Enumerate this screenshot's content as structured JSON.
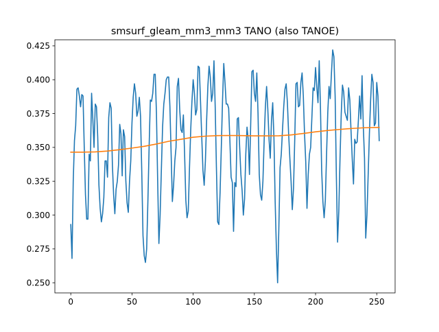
{
  "chart_data": {
    "type": "line",
    "title": "smsurf_gleam_mm3_mm3 TANO (also TANOE)",
    "xlabel": "",
    "ylabel": "",
    "xlim": [
      -13,
      265
    ],
    "ylim": [
      0.2425,
      0.4295
    ],
    "x_ticks": [
      0,
      50,
      100,
      150,
      200,
      250
    ],
    "y_ticks": [
      0.25,
      0.275,
      0.3,
      0.325,
      0.35,
      0.375,
      0.4,
      0.425
    ],
    "grid": false,
    "legend": "none",
    "series": [
      {
        "color": "#1f77b4",
        "points": [
          [
            0,
            0.293
          ],
          [
            1,
            0.268
          ],
          [
            2,
            0.325
          ],
          [
            3,
            0.355
          ],
          [
            4,
            0.366
          ],
          [
            5,
            0.393
          ],
          [
            6,
            0.394
          ],
          [
            7,
            0.388
          ],
          [
            8,
            0.38
          ],
          [
            9,
            0.389
          ],
          [
            10,
            0.388
          ],
          [
            11,
            0.35
          ],
          [
            12,
            0.315
          ],
          [
            13,
            0.297
          ],
          [
            14,
            0.297
          ],
          [
            15,
            0.345
          ],
          [
            16,
            0.34
          ],
          [
            17,
            0.39
          ],
          [
            18,
            0.371
          ],
          [
            19,
            0.35
          ],
          [
            20,
            0.382
          ],
          [
            21,
            0.38
          ],
          [
            22,
            0.358
          ],
          [
            23,
            0.322
          ],
          [
            24,
            0.305
          ],
          [
            25,
            0.295
          ],
          [
            26,
            0.301
          ],
          [
            27,
            0.313
          ],
          [
            28,
            0.34
          ],
          [
            29,
            0.34
          ],
          [
            30,
            0.328
          ],
          [
            31,
            0.372
          ],
          [
            32,
            0.383
          ],
          [
            33,
            0.379
          ],
          [
            34,
            0.337
          ],
          [
            35,
            0.315
          ],
          [
            36,
            0.301
          ],
          [
            37,
            0.319
          ],
          [
            38,
            0.325
          ],
          [
            39,
            0.337
          ],
          [
            40,
            0.367
          ],
          [
            41,
            0.36
          ],
          [
            42,
            0.329
          ],
          [
            43,
            0.363
          ],
          [
            44,
            0.358
          ],
          [
            45,
            0.325
          ],
          [
            46,
            0.309
          ],
          [
            47,
            0.302
          ],
          [
            48,
            0.325
          ],
          [
            49,
            0.34
          ],
          [
            50,
            0.368
          ],
          [
            51,
            0.387
          ],
          [
            52,
            0.397
          ],
          [
            53,
            0.39
          ],
          [
            54,
            0.373
          ],
          [
            55,
            0.377
          ],
          [
            56,
            0.387
          ],
          [
            57,
            0.373
          ],
          [
            58,
            0.332
          ],
          [
            59,
            0.285
          ],
          [
            60,
            0.27
          ],
          [
            61,
            0.265
          ],
          [
            62,
            0.275
          ],
          [
            63,
            0.31
          ],
          [
            64,
            0.35
          ],
          [
            65,
            0.385
          ],
          [
            66,
            0.384
          ],
          [
            67,
            0.39
          ],
          [
            68,
            0.404
          ],
          [
            69,
            0.404
          ],
          [
            70,
            0.375
          ],
          [
            71,
            0.325
          ],
          [
            72,
            0.279
          ],
          [
            73,
            0.3
          ],
          [
            74,
            0.333
          ],
          [
            75,
            0.365
          ],
          [
            76,
            0.382
          ],
          [
            77,
            0.39
          ],
          [
            78,
            0.4
          ],
          [
            79,
            0.402
          ],
          [
            80,
            0.402
          ],
          [
            81,
            0.38
          ],
          [
            82,
            0.345
          ],
          [
            83,
            0.31
          ],
          [
            84,
            0.322
          ],
          [
            85,
            0.34
          ],
          [
            86,
            0.35
          ],
          [
            87,
            0.395
          ],
          [
            88,
            0.401
          ],
          [
            89,
            0.378
          ],
          [
            90,
            0.363
          ],
          [
            91,
            0.361
          ],
          [
            92,
            0.374
          ],
          [
            93,
            0.345
          ],
          [
            94,
            0.311
          ],
          [
            95,
            0.298
          ],
          [
            96,
            0.303
          ],
          [
            97,
            0.335
          ],
          [
            98,
            0.363
          ],
          [
            99,
            0.384
          ],
          [
            100,
            0.4
          ],
          [
            101,
            0.39
          ],
          [
            102,
            0.374
          ],
          [
            103,
            0.378
          ],
          [
            104,
            0.41
          ],
          [
            105,
            0.409
          ],
          [
            106,
            0.384
          ],
          [
            107,
            0.358
          ],
          [
            108,
            0.333
          ],
          [
            109,
            0.322
          ],
          [
            110,
            0.34
          ],
          [
            111,
            0.37
          ],
          [
            112,
            0.395
          ],
          [
            113,
            0.41
          ],
          [
            114,
            0.402
          ],
          [
            115,
            0.384
          ],
          [
            116,
            0.39
          ],
          [
            117,
            0.414
          ],
          [
            118,
            0.38
          ],
          [
            119,
            0.335
          ],
          [
            120,
            0.295
          ],
          [
            121,
            0.293
          ],
          [
            122,
            0.317
          ],
          [
            123,
            0.35
          ],
          [
            124,
            0.385
          ],
          [
            125,
            0.412
          ],
          [
            126,
            0.398
          ],
          [
            127,
            0.382
          ],
          [
            128,
            0.382
          ],
          [
            129,
            0.379
          ],
          [
            130,
            0.355
          ],
          [
            131,
            0.328
          ],
          [
            132,
            0.324
          ],
          [
            133,
            0.288
          ],
          [
            134,
            0.324
          ],
          [
            135,
            0.321
          ],
          [
            136,
            0.371
          ],
          [
            137,
            0.372
          ],
          [
            138,
            0.35
          ],
          [
            139,
            0.33
          ],
          [
            140,
            0.318
          ],
          [
            141,
            0.3
          ],
          [
            142,
            0.312
          ],
          [
            143,
            0.345
          ],
          [
            144,
            0.365
          ],
          [
            145,
            0.356
          ],
          [
            146,
            0.33
          ],
          [
            147,
            0.367
          ],
          [
            148,
            0.406
          ],
          [
            149,
            0.407
          ],
          [
            150,
            0.39
          ],
          [
            151,
            0.384
          ],
          [
            152,
            0.405
          ],
          [
            153,
            0.375
          ],
          [
            154,
            0.33
          ],
          [
            155,
            0.315
          ],
          [
            156,
            0.311
          ],
          [
            157,
            0.325
          ],
          [
            158,
            0.355
          ],
          [
            159,
            0.38
          ],
          [
            160,
            0.395
          ],
          [
            161,
            0.378
          ],
          [
            162,
            0.356
          ],
          [
            163,
            0.342
          ],
          [
            164,
            0.37
          ],
          [
            165,
            0.383
          ],
          [
            166,
            0.357
          ],
          [
            167,
            0.31
          ],
          [
            168,
            0.275
          ],
          [
            169,
            0.25
          ],
          [
            170,
            0.29
          ],
          [
            171,
            0.335
          ],
          [
            172,
            0.345
          ],
          [
            173,
            0.363
          ],
          [
            174,
            0.38
          ],
          [
            175,
            0.393
          ],
          [
            176,
            0.397
          ],
          [
            177,
            0.383
          ],
          [
            178,
            0.36
          ],
          [
            179,
            0.342
          ],
          [
            180,
            0.325
          ],
          [
            181,
            0.304
          ],
          [
            182,
            0.32
          ],
          [
            183,
            0.356
          ],
          [
            184,
            0.397
          ],
          [
            185,
            0.398
          ],
          [
            186,
            0.38
          ],
          [
            187,
            0.381
          ],
          [
            188,
            0.398
          ],
          [
            189,
            0.405
          ],
          [
            190,
            0.388
          ],
          [
            191,
            0.36
          ],
          [
            192,
            0.339
          ],
          [
            193,
            0.305
          ],
          [
            194,
            0.33
          ],
          [
            195,
            0.345
          ],
          [
            196,
            0.35
          ],
          [
            197,
            0.372
          ],
          [
            198,
            0.394
          ],
          [
            199,
            0.392
          ],
          [
            200,
            0.409
          ],
          [
            201,
            0.395
          ],
          [
            202,
            0.383
          ],
          [
            203,
            0.414
          ],
          [
            204,
            0.38
          ],
          [
            205,
            0.333
          ],
          [
            206,
            0.31
          ],
          [
            207,
            0.298
          ],
          [
            208,
            0.311
          ],
          [
            209,
            0.345
          ],
          [
            210,
            0.376
          ],
          [
            211,
            0.395
          ],
          [
            212,
            0.386
          ],
          [
            213,
            0.405
          ],
          [
            214,
            0.422
          ],
          [
            215,
            0.417
          ],
          [
            216,
            0.388
          ],
          [
            217,
            0.329
          ],
          [
            218,
            0.28
          ],
          [
            219,
            0.303
          ],
          [
            220,
            0.342
          ],
          [
            221,
            0.375
          ],
          [
            222,
            0.396
          ],
          [
            223,
            0.391
          ],
          [
            224,
            0.376
          ],
          [
            225,
            0.373
          ],
          [
            226,
            0.37
          ],
          [
            227,
            0.394
          ],
          [
            228,
            0.385
          ],
          [
            229,
            0.362
          ],
          [
            230,
            0.341
          ],
          [
            231,
            0.323
          ],
          [
            232,
            0.356
          ],
          [
            233,
            0.353
          ],
          [
            234,
            0.354
          ],
          [
            235,
            0.37
          ],
          [
            236,
            0.388
          ],
          [
            237,
            0.371
          ],
          [
            238,
            0.403
          ],
          [
            239,
            0.366
          ],
          [
            240,
            0.342
          ],
          [
            241,
            0.283
          ],
          [
            242,
            0.3
          ],
          [
            243,
            0.33
          ],
          [
            244,
            0.36
          ],
          [
            245,
            0.385
          ],
          [
            246,
            0.404
          ],
          [
            247,
            0.398
          ],
          [
            248,
            0.366
          ],
          [
            249,
            0.368
          ],
          [
            250,
            0.398
          ],
          [
            251,
            0.388
          ],
          [
            252,
            0.355
          ]
        ]
      },
      {
        "color": "#ff7f0e",
        "points": [
          [
            0,
            0.3465
          ],
          [
            10,
            0.3465
          ],
          [
            20,
            0.3467
          ],
          [
            30,
            0.3473
          ],
          [
            40,
            0.3483
          ],
          [
            50,
            0.3495
          ],
          [
            60,
            0.3508
          ],
          [
            70,
            0.3525
          ],
          [
            80,
            0.3545
          ],
          [
            90,
            0.356
          ],
          [
            100,
            0.3575
          ],
          [
            110,
            0.3583
          ],
          [
            120,
            0.3587
          ],
          [
            130,
            0.3588
          ],
          [
            140,
            0.3587
          ],
          [
            150,
            0.3585
          ],
          [
            160,
            0.3585
          ],
          [
            170,
            0.3586
          ],
          [
            180,
            0.3592
          ],
          [
            190,
            0.3603
          ],
          [
            200,
            0.3615
          ],
          [
            210,
            0.3625
          ],
          [
            220,
            0.3633
          ],
          [
            230,
            0.364
          ],
          [
            240,
            0.3645
          ],
          [
            252,
            0.3648
          ]
        ]
      }
    ]
  }
}
